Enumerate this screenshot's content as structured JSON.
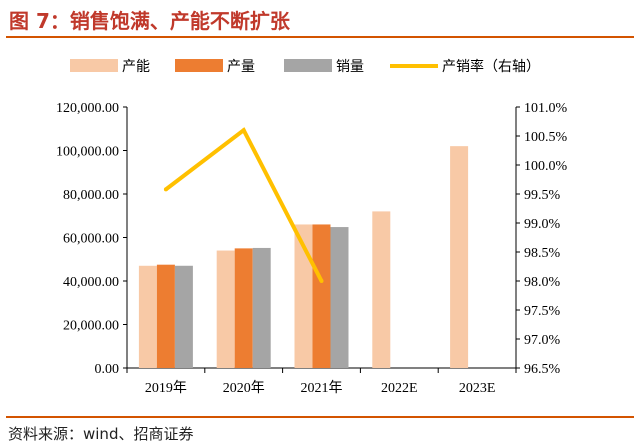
{
  "header": {
    "title": "图 7：销售饱满、产能不断扩张"
  },
  "footer": {
    "source": "资料来源：wind、招商证券"
  },
  "colors": {
    "accent": "#d35400",
    "title": "#c0392b",
    "capacity": "#f8c9a6",
    "output": "#ed7d31",
    "sales": "#a5a5a5",
    "ratio": "#ffc000"
  },
  "chart_data": {
    "type": "bar",
    "categories": [
      "2019年",
      "2020年",
      "2021年",
      "2022E",
      "2023E"
    ],
    "series": [
      {
        "name": "产能",
        "kind": "bar",
        "axis": "left",
        "color": "#f8c9a6",
        "values": [
          47000,
          54000,
          66000,
          72000,
          102000
        ]
      },
      {
        "name": "产量",
        "kind": "bar",
        "axis": "left",
        "color": "#ed7d31",
        "values": [
          47500,
          55000,
          66000,
          null,
          null
        ]
      },
      {
        "name": "销量",
        "kind": "bar",
        "axis": "left",
        "color": "#a5a5a5",
        "values": [
          47000,
          55200,
          64800,
          null,
          null
        ]
      },
      {
        "name": "产销率（右轴）",
        "kind": "line",
        "axis": "right",
        "color": "#ffc000",
        "values": [
          99.58,
          100.6,
          98.0,
          null,
          null
        ]
      }
    ],
    "y_left": {
      "ylim": [
        0,
        120000
      ],
      "ticks": [
        "0.00",
        "20,000.00",
        "40,000.00",
        "60,000.00",
        "80,000.00",
        "100,000.00",
        "120,000.00"
      ]
    },
    "y_right": {
      "ylim": [
        96.5,
        101.0
      ],
      "ticks": [
        "96.5%",
        "97.0%",
        "97.5%",
        "98.0%",
        "98.5%",
        "99.0%",
        "99.5%",
        "100.0%",
        "100.5%",
        "101.0%"
      ]
    },
    "legend_position": "top",
    "grid": false
  }
}
